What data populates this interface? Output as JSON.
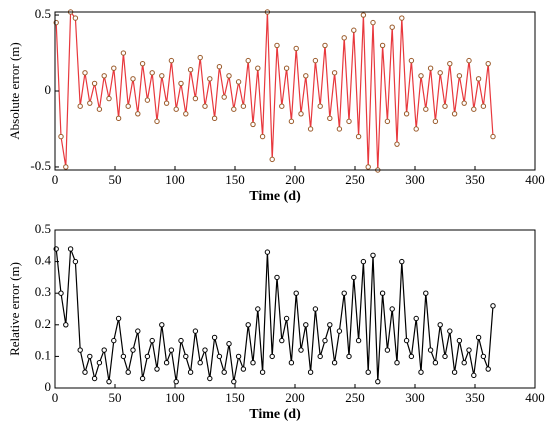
{
  "chart_data": [
    {
      "type": "line",
      "xlabel": "Time (d)",
      "ylabel": "Absolute error (m)",
      "xlim": [
        0,
        400
      ],
      "xticks": [
        0,
        50,
        100,
        150,
        200,
        250,
        300,
        350,
        400
      ],
      "ylim": [
        -0.52,
        0.52
      ],
      "yticks": [
        -0.5,
        0,
        0.5
      ],
      "x": [
        1,
        5,
        9,
        13,
        17,
        21,
        25,
        29,
        33,
        37,
        41,
        45,
        49,
        53,
        57,
        61,
        65,
        69,
        73,
        77,
        81,
        85,
        89,
        93,
        97,
        101,
        105,
        109,
        113,
        117,
        121,
        125,
        129,
        133,
        137,
        141,
        145,
        149,
        153,
        157,
        161,
        165,
        169,
        173,
        177,
        181,
        185,
        189,
        193,
        197,
        201,
        205,
        209,
        213,
        217,
        221,
        225,
        229,
        233,
        237,
        241,
        245,
        249,
        253,
        257,
        261,
        265,
        269,
        273,
        277,
        281,
        285,
        289,
        293,
        297,
        301,
        305,
        309,
        313,
        317,
        321,
        325,
        329,
        333,
        337,
        341,
        345,
        349,
        353,
        357,
        361,
        365
      ],
      "series": [
        {
          "color": "#e8383d",
          "marker_color": "#9a5a2a",
          "values": [
            0.45,
            -0.3,
            -0.5,
            0.52,
            0.48,
            -0.1,
            0.12,
            -0.08,
            0.05,
            -0.12,
            0.1,
            -0.05,
            0.15,
            -0.18,
            0.25,
            -0.1,
            0.08,
            -0.15,
            0.18,
            -0.06,
            0.12,
            -0.2,
            0.1,
            -0.08,
            0.2,
            -0.12,
            0.05,
            -0.15,
            0.14,
            -0.05,
            0.22,
            -0.1,
            0.08,
            -0.18,
            0.16,
            -0.04,
            0.1,
            -0.12,
            0.06,
            -0.1,
            0.2,
            -0.22,
            0.15,
            -0.3,
            0.52,
            -0.45,
            0.3,
            -0.1,
            0.15,
            -0.2,
            0.28,
            -0.15,
            0.1,
            -0.25,
            0.2,
            -0.1,
            0.3,
            -0.18,
            0.12,
            -0.25,
            0.35,
            -0.2,
            0.4,
            -0.3,
            0.5,
            -0.5,
            0.45,
            -0.52,
            0.3,
            -0.2,
            0.42,
            -0.35,
            0.48,
            -0.15,
            0.2,
            -0.25,
            0.1,
            -0.12,
            0.15,
            -0.2,
            0.12,
            -0.1,
            0.18,
            -0.15,
            0.1,
            -0.08,
            0.2,
            -0.12,
            0.08,
            -0.1,
            0.18,
            -0.3
          ]
        }
      ]
    },
    {
      "type": "line",
      "xlabel": "Time (d)",
      "ylabel": "Relative error (m)",
      "xlim": [
        0,
        400
      ],
      "xticks": [
        0,
        50,
        100,
        150,
        200,
        250,
        300,
        350,
        400
      ],
      "ylim": [
        0,
        0.5
      ],
      "yticks": [
        0,
        0.1,
        0.2,
        0.3,
        0.4,
        0.5
      ],
      "x": [
        1,
        5,
        9,
        13,
        17,
        21,
        25,
        29,
        33,
        37,
        41,
        45,
        49,
        53,
        57,
        61,
        65,
        69,
        73,
        77,
        81,
        85,
        89,
        93,
        97,
        101,
        105,
        109,
        113,
        117,
        121,
        125,
        129,
        133,
        137,
        141,
        145,
        149,
        153,
        157,
        161,
        165,
        169,
        173,
        177,
        181,
        185,
        189,
        193,
        197,
        201,
        205,
        209,
        213,
        217,
        221,
        225,
        229,
        233,
        237,
        241,
        245,
        249,
        253,
        257,
        261,
        265,
        269,
        273,
        277,
        281,
        285,
        289,
        293,
        297,
        301,
        305,
        309,
        313,
        317,
        321,
        325,
        329,
        333,
        337,
        341,
        345,
        349,
        353,
        357,
        361,
        365
      ],
      "series": [
        {
          "color": "#000000",
          "marker_color": "#000000",
          "values": [
            0.44,
            0.3,
            0.2,
            0.44,
            0.4,
            0.12,
            0.05,
            0.1,
            0.03,
            0.08,
            0.12,
            0.02,
            0.15,
            0.22,
            0.1,
            0.05,
            0.12,
            0.18,
            0.03,
            0.1,
            0.15,
            0.06,
            0.2,
            0.08,
            0.12,
            0.02,
            0.15,
            0.1,
            0.05,
            0.18,
            0.08,
            0.12,
            0.03,
            0.16,
            0.1,
            0.05,
            0.14,
            0.02,
            0.1,
            0.06,
            0.2,
            0.08,
            0.25,
            0.05,
            0.43,
            0.1,
            0.35,
            0.15,
            0.22,
            0.08,
            0.3,
            0.12,
            0.2,
            0.05,
            0.25,
            0.1,
            0.15,
            0.2,
            0.08,
            0.18,
            0.3,
            0.1,
            0.35,
            0.15,
            0.4,
            0.05,
            0.42,
            0.02,
            0.3,
            0.12,
            0.25,
            0.08,
            0.4,
            0.15,
            0.1,
            0.22,
            0.05,
            0.3,
            0.12,
            0.08,
            0.2,
            0.1,
            0.18,
            0.05,
            0.15,
            0.08,
            0.12,
            0.04,
            0.16,
            0.1,
            0.06,
            0.26
          ]
        }
      ]
    }
  ]
}
